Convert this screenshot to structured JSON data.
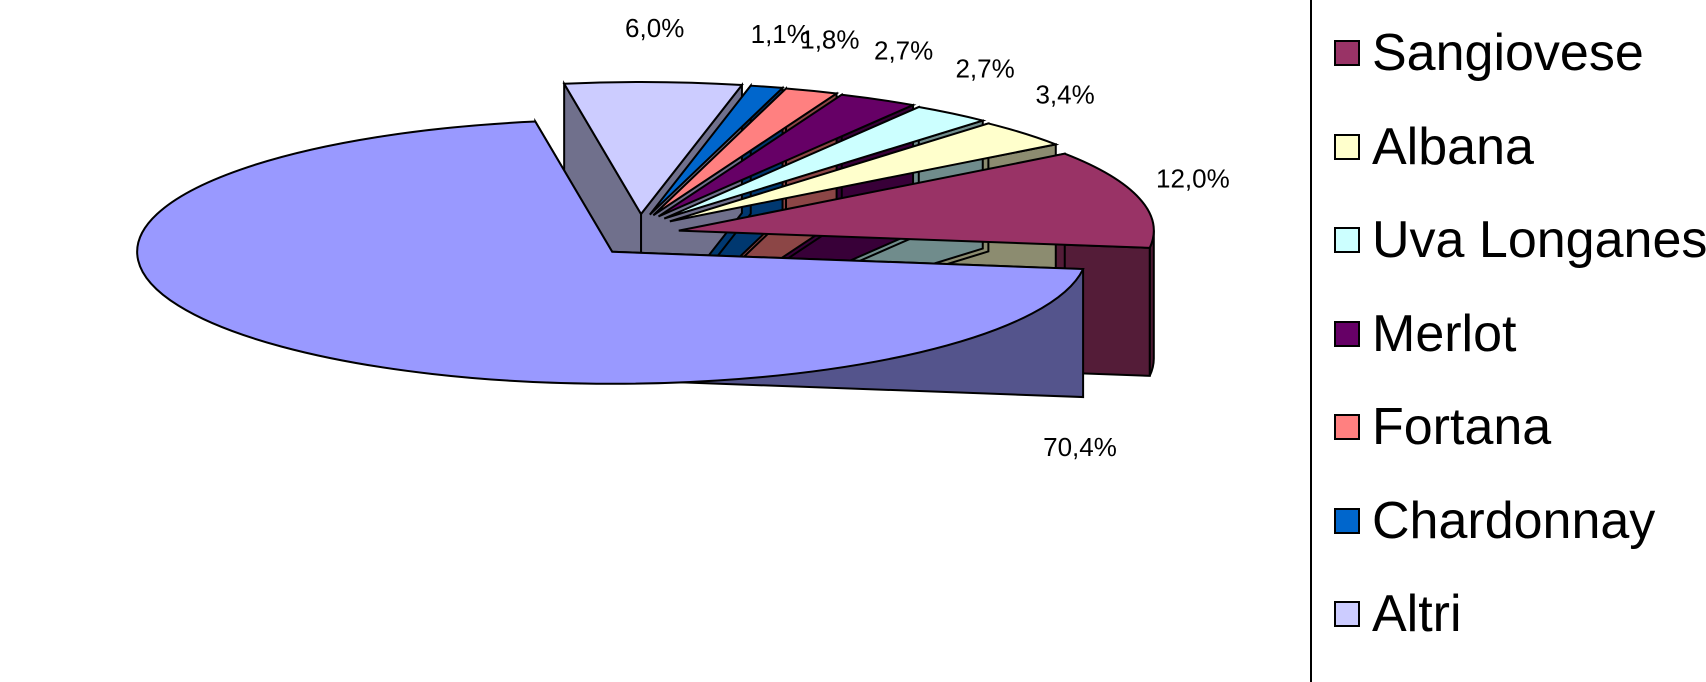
{
  "chart_data": {
    "type": "pie",
    "style": "3d-exploded",
    "title": "",
    "legend_position": "right",
    "slices": [
      {
        "name": "Sangiovese",
        "value": 12.0,
        "label": "12,0%",
        "color": "#993366"
      },
      {
        "name": "Albana",
        "value": 3.4,
        "label": "3,4%",
        "color": "#FFFFCC"
      },
      {
        "name": "Uva Longanesi",
        "value": 2.7,
        "label": "2,7%",
        "color": "#CCFFFF"
      },
      {
        "name": "Merlot",
        "value": 2.7,
        "label": "2,7%",
        "color": "#660066"
      },
      {
        "name": "Fortana",
        "value": 1.8,
        "label": "1,8%",
        "color": "#FF8080"
      },
      {
        "name": "Chardonnay",
        "value": 1.1,
        "label": "1,1%",
        "color": "#0066CC"
      },
      {
        "name": "Altri",
        "value": 6.0,
        "label": "6,0%",
        "color": "#CCCCFF"
      },
      {
        "name": "",
        "value": 70.4,
        "label": "70,4%",
        "color": "#9999FF"
      }
    ]
  },
  "legend": {
    "items": [
      {
        "label": "Sangiovese",
        "color": "#993366"
      },
      {
        "label": "Albana",
        "color": "#FFFFCC"
      },
      {
        "label": "Uva Longanesi",
        "color": "#CCFFFF"
      },
      {
        "label": "Merlot",
        "color": "#660066"
      },
      {
        "label": "Fortana",
        "color": "#FF8080"
      },
      {
        "label": "Chardonnay",
        "color": "#0066CC"
      },
      {
        "label": "Altri",
        "color": "#CCCCFF"
      }
    ]
  }
}
